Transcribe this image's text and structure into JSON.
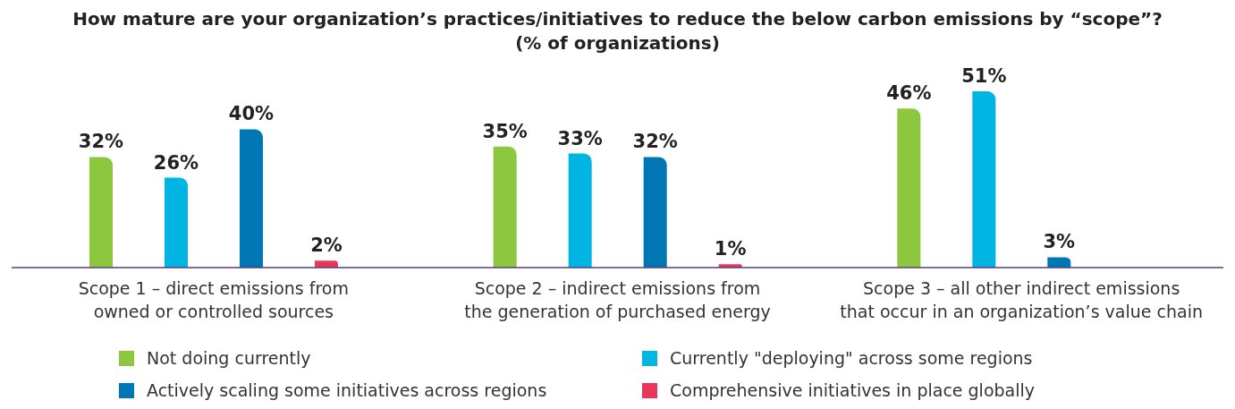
{
  "chart_data": {
    "type": "bar",
    "title": "How mature are your organization’s practices/initiatives to reduce the below carbon emissions by “scope”?",
    "subtitle": "(% of organizations)",
    "categories": [
      "Scope 1 – direct emissions from\nowned or controlled sources",
      "Scope 2 – indirect emissions from\nthe generation of purchased energy",
      "Scope 3 – all other indirect emissions\nthat occur in an organization’s value chain"
    ],
    "series": [
      {
        "name": "Not doing currently",
        "color": "#8dc63f",
        "values": [
          32,
          35,
          46
        ],
        "value_labels": [
          "32%",
          "35%",
          "46%"
        ]
      },
      {
        "name": "Currently \"deploying\" across some regions",
        "color": "#00b5e2",
        "values": [
          26,
          33,
          51
        ],
        "value_labels": [
          "26%",
          "33%",
          "51%"
        ]
      },
      {
        "name": "Actively scaling some initiatives across regions",
        "color": "#0077b5",
        "values": [
          40,
          32,
          3
        ],
        "value_labels": [
          "40%",
          "32%",
          "3%"
        ]
      },
      {
        "name": "Comprehensive initiatives in place globally",
        "color": "#e8385a",
        "values": [
          2,
          1,
          null
        ],
        "value_labels": [
          "2%",
          "1%",
          null
        ]
      }
    ],
    "legend": "bottom",
    "grid": false
  }
}
